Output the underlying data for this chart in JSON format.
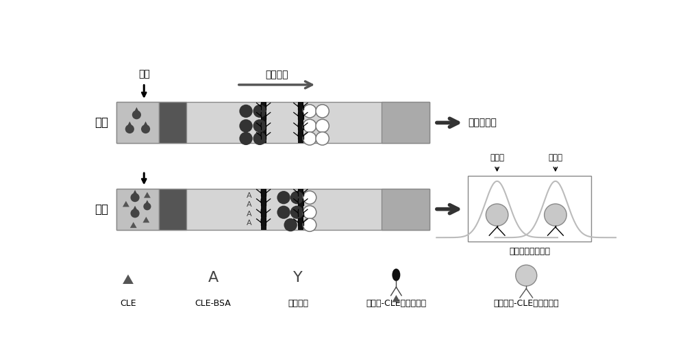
{
  "bg_color": "#ffffff",
  "label_neg_text": "阴性",
  "label_pos_text": "阳性",
  "title_arrow_text": "加样",
  "flow_arrow_text": "层析方向",
  "result_neg_text": "结果为阴性",
  "result_pos_chart_text": "仪器读取阳性数据",
  "detect_line_text": "检测线",
  "quality_line_text": "质控线",
  "legend_cle": "CLE",
  "legend_cle_bsa": "CLE-BSA",
  "legend_anti_mouse": "抗鼠二抗",
  "legend_gold_cle": "胶体金-CLE抗体复合物",
  "legend_fluoro_cle": "荧光微球-CLE抗体复合物"
}
